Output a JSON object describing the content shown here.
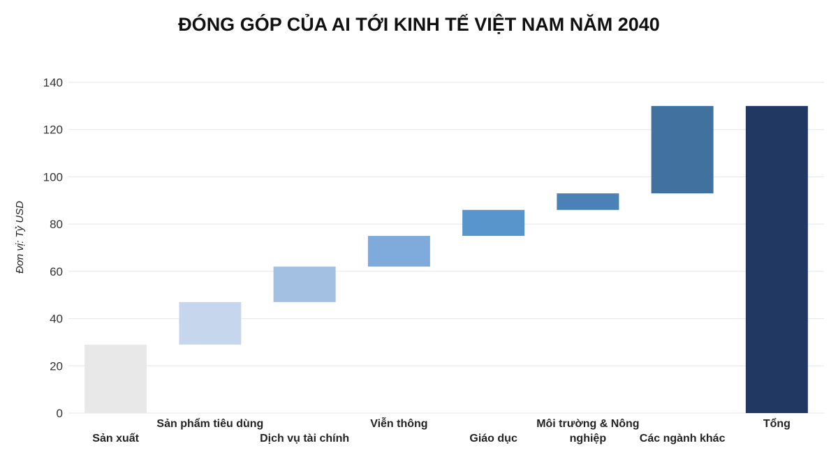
{
  "chart_data": {
    "type": "waterfall",
    "title": "ĐÓNG GÓP CỦA AI TỚI KINH TẾ VIỆT NAM NĂM 2040",
    "ylabel": "Đơn vị: Tỷ USD",
    "xlabel": "",
    "ylim": [
      0,
      140
    ],
    "yticks": [
      0,
      20,
      40,
      60,
      80,
      100,
      120,
      140
    ],
    "grid": true,
    "categories": [
      {
        "lines": [
          "Sản xuất"
        ],
        "label_row": "low"
      },
      {
        "lines": [
          "Sản phẩm tiêu dùng"
        ],
        "label_row": "high"
      },
      {
        "lines": [
          "Dịch vụ tài chính"
        ],
        "label_row": "low"
      },
      {
        "lines": [
          "Viễn thông"
        ],
        "label_row": "high"
      },
      {
        "lines": [
          "Giáo dục"
        ],
        "label_row": "low"
      },
      {
        "lines": [
          "Môi trường & Nông",
          "nghiệp"
        ],
        "label_row": "high"
      },
      {
        "lines": [
          "Các ngành khác"
        ],
        "label_row": "low"
      },
      {
        "lines": [
          "Tổng"
        ],
        "label_row": "high"
      }
    ],
    "bars": [
      {
        "base": 0,
        "top": 29,
        "color": "#e8e8e8"
      },
      {
        "base": 29,
        "top": 47,
        "color": "#c6d6ec"
      },
      {
        "base": 47,
        "top": 62,
        "color": "#a3c0e3"
      },
      {
        "base": 62,
        "top": 75,
        "color": "#7eaadc"
      },
      {
        "base": 75,
        "top": 86,
        "color": "#5795cc"
      },
      {
        "base": 86,
        "top": 93,
        "color": "#4a82b8"
      },
      {
        "base": 93,
        "top": 130,
        "color": "#41719f"
      },
      {
        "base": 0,
        "top": 130,
        "color": "#213862"
      }
    ]
  }
}
